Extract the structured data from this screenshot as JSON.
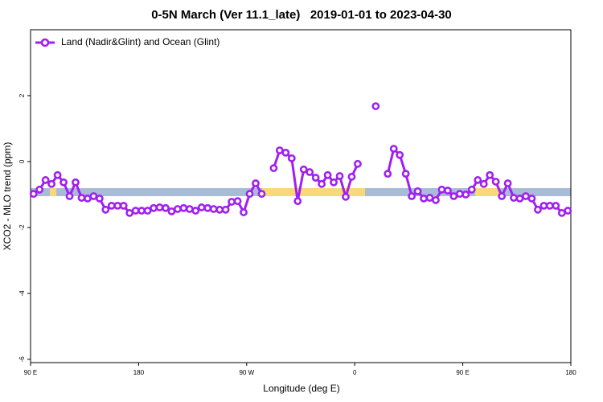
{
  "chart_data": {
    "type": "line",
    "title": "0-5N March (Ver 11.1_late)   2019-01-01 to 2023-04-30",
    "x_label": "Longitude (deg E)",
    "y_label": "XCO2 - MLO trend (ppm)",
    "x": [
      92.5,
      97.5,
      102.5,
      107.5,
      112.5,
      117.5,
      122.5,
      127.5,
      132.5,
      137.5,
      142.5,
      147.5,
      152.5,
      157.5,
      162.5,
      167.5,
      172.5,
      177.5,
      182.5,
      187.5,
      192.5,
      197.5,
      202.5,
      207.5,
      212.5,
      217.5,
      222.5,
      227.5,
      232.5,
      237.5,
      242.5,
      247.5,
      252.5,
      257.5,
      262.5,
      267.5,
      272.5,
      277.5,
      282.5,
      287.5,
      292.5,
      297.5,
      302.5,
      307.5,
      312.5,
      317.5,
      322.5,
      327.5,
      332.5,
      337.5,
      342.5,
      347.5,
      352.5,
      357.5,
      362.5,
      367.5,
      372.5,
      377.5,
      382.5,
      387.5,
      392.5,
      397.5,
      402.5,
      407.5,
      412.5,
      417.5,
      422.5,
      427.5,
      432.5,
      437.5,
      442.5,
      447.5,
      452.5,
      457.5,
      462.5,
      467.5,
      472.5,
      477.5,
      482.5,
      487.5,
      492.5,
      497.5,
      502.5,
      507.5,
      512.5,
      517.5,
      522.5,
      527.5,
      532.5,
      537.5
    ],
    "series": [
      {
        "name": "Land (Nadir&Glint) and Ocean (Glint)",
        "color": "#a020f0",
        "values": [
          -0.98,
          -0.85,
          -0.56,
          -0.68,
          -0.41,
          -0.63,
          -1.05,
          -0.63,
          -1.1,
          -1.12,
          -1.05,
          -1.12,
          -1.46,
          -1.34,
          -1.34,
          -1.34,
          -1.56,
          -1.49,
          -1.49,
          -1.49,
          -1.41,
          -1.39,
          -1.41,
          -1.51,
          -1.44,
          -1.41,
          -1.44,
          -1.49,
          -1.39,
          -1.41,
          -1.44,
          -1.46,
          -1.46,
          -1.22,
          -1.2,
          -1.54,
          -0.98,
          -0.66,
          -0.98,
          null,
          -0.2,
          0.34,
          0.27,
          0.1,
          -1.2,
          -0.24,
          -0.32,
          -0.49,
          -0.68,
          -0.41,
          -0.63,
          -0.44,
          -1.07,
          -0.46,
          -0.07,
          null,
          null,
          1.68,
          null,
          -0.37,
          0.39,
          0.2,
          -0.37,
          -1.05,
          -0.9,
          -1.12,
          -1.1,
          -1.17,
          -0.85,
          -0.88,
          -1.05,
          -0.98,
          -1.0,
          -0.85,
          -0.56,
          -0.68,
          -0.41,
          -0.61,
          -1.05,
          -0.66,
          -1.1,
          -1.12,
          -1.05,
          -1.12,
          -1.46,
          -1.34,
          -1.34,
          -1.34,
          -1.56,
          -1.49
        ]
      }
    ],
    "xlim": [
      90,
      540
    ],
    "xticks": [
      {
        "value": 90,
        "label": "90 E"
      },
      180,
      {
        "value": 270,
        "label": "90 W"
      },
      {
        "value": 360,
        "label": "0"
      },
      {
        "value": 450,
        "label": "90 E"
      },
      {
        "value": 540,
        "label": "180"
      }
    ],
    "ylim": [
      -6.1,
      4.0
    ],
    "yticks": [
      -6,
      -4,
      -2,
      0,
      2
    ],
    "legend": "top-left",
    "grid": false
  }
}
